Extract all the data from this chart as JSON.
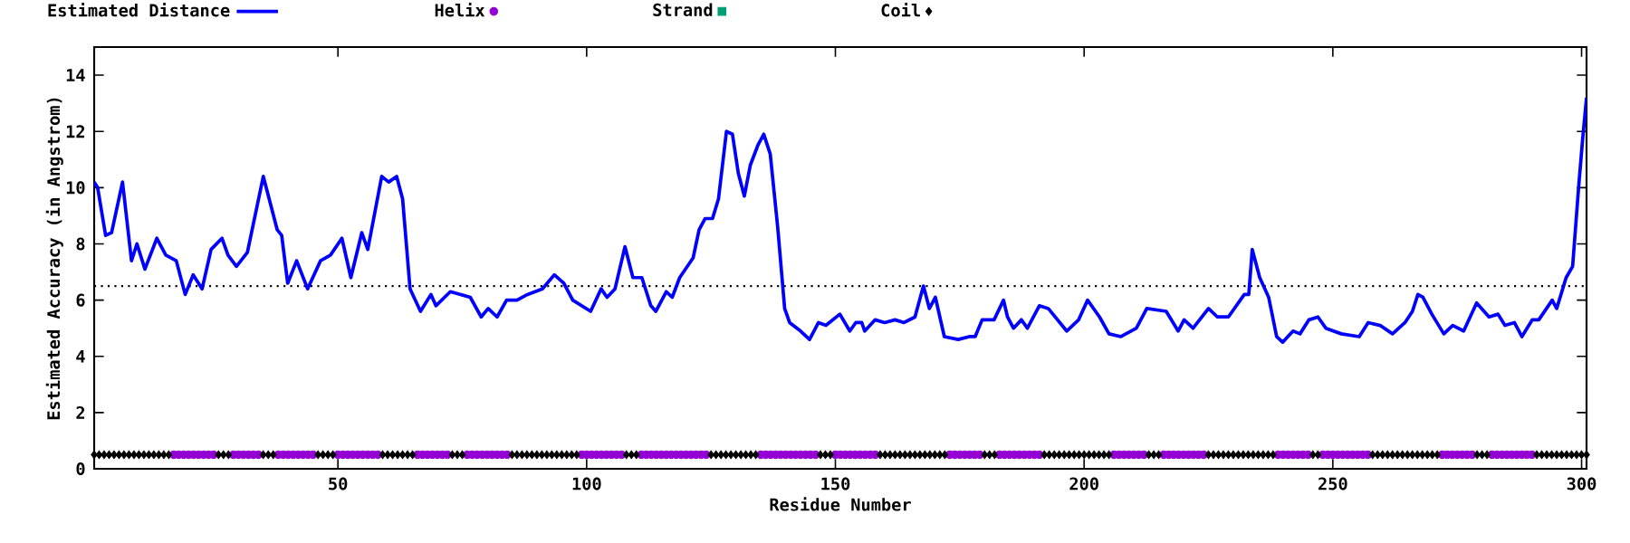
{
  "chart_data": {
    "type": "line",
    "xlabel": "Residue Number",
    "ylabel": "Estimated Accuracy (in Angstrom)",
    "xlim": [
      1,
      301
    ],
    "ylim": [
      0,
      15
    ],
    "xticks": [
      50,
      100,
      150,
      200,
      250,
      300
    ],
    "yticks": [
      0,
      2,
      4,
      6,
      8,
      10,
      12,
      14
    ],
    "legend": "top",
    "ref_lines": [
      {
        "axis": "y",
        "value": 6.5,
        "color": "#000000",
        "line_style": "dotted"
      }
    ],
    "series": [
      {
        "name": "Estimated Distance",
        "color": "#0000ff",
        "marker": "none",
        "line_style": "solid",
        "x": [
          1,
          1.7,
          3.3,
          4.5,
          6.7,
          8.5,
          9.6,
          11.2,
          13.6,
          15.4,
          17.5,
          19.3,
          20.9,
          22.7,
          24.5,
          26.7,
          27.9,
          29.6,
          31.8,
          35.0,
          37.8,
          38.7,
          39.9,
          41.7,
          43.9,
          46.5,
          48.5,
          50.8,
          52.6,
          54.8,
          56.0,
          58.8,
          60.2,
          61.8,
          63.0,
          64.5,
          66.6,
          68.7,
          69.7,
          72.6,
          76.6,
          78.8,
          80.2,
          82.0,
          83.9,
          86.0,
          88.1,
          91.1,
          93.5,
          95.4,
          97.2,
          100.8,
          102.9,
          104.1,
          105.7,
          107.7,
          109.3,
          111.1,
          112.9,
          113.9,
          116.0,
          117.2,
          118.7,
          121.4,
          122.6,
          123.8,
          125.3,
          126.5,
          128.1,
          129.3,
          130.5,
          131.7,
          132.9,
          134.4,
          135.6,
          136.9,
          138.4,
          139.8,
          140.8,
          143.0,
          144.8,
          146.6,
          148.1,
          150.9,
          152.9,
          154.1,
          155.3,
          155.9,
          158.0,
          159.9,
          162.0,
          163.8,
          166.0,
          167.7,
          168.9,
          170.1,
          171.9,
          174.7,
          176.9,
          178.1,
          179.5,
          181.9,
          183.8,
          184.6,
          185.8,
          187.4,
          188.6,
          191.0,
          192.8,
          196.5,
          198.9,
          200.7,
          203.1,
          205.0,
          207.4,
          210.5,
          212.6,
          216.5,
          218.9,
          220.1,
          221.9,
          225.0,
          226.8,
          229.0,
          232.2,
          233.1,
          233.8,
          235.3,
          237.1,
          238.7,
          239.9,
          242.0,
          243.4,
          245.2,
          247.0,
          248.6,
          251.7,
          255.3,
          257.1,
          259.5,
          262.0,
          264.5,
          266.0,
          267.1,
          268.1,
          269.9,
          272.3,
          274.1,
          276.3,
          278.9,
          281.4,
          283.2,
          284.6,
          286.5,
          288.0,
          290.1,
          291.4,
          294.1,
          295.0,
          296.9,
          298.2,
          299.4,
          300.2,
          301.0
        ],
        "values": [
          10.2,
          10.0,
          8.3,
          8.4,
          10.2,
          7.4,
          8.0,
          7.1,
          8.2,
          7.6,
          7.4,
          6.2,
          6.9,
          6.4,
          7.8,
          8.2,
          7.6,
          7.2,
          7.7,
          10.4,
          8.5,
          8.3,
          6.6,
          7.4,
          6.4,
          7.4,
          7.6,
          8.2,
          6.8,
          8.4,
          7.8,
          10.4,
          10.2,
          10.4,
          9.6,
          6.4,
          5.6,
          6.2,
          5.8,
          6.3,
          6.1,
          5.4,
          5.7,
          5.4,
          6.0,
          6.0,
          6.2,
          6.4,
          6.9,
          6.6,
          6.0,
          5.6,
          6.4,
          6.1,
          6.4,
          7.9,
          6.8,
          6.8,
          5.8,
          5.6,
          6.3,
          6.1,
          6.8,
          7.5,
          8.5,
          8.9,
          8.9,
          9.6,
          12.0,
          11.9,
          10.5,
          9.7,
          10.8,
          11.5,
          11.9,
          11.2,
          8.6,
          5.7,
          5.2,
          4.9,
          4.6,
          5.2,
          5.1,
          5.5,
          4.9,
          5.2,
          5.2,
          4.9,
          5.3,
          5.2,
          5.3,
          5.2,
          5.4,
          6.5,
          5.7,
          6.1,
          4.7,
          4.6,
          4.7,
          4.7,
          5.3,
          5.3,
          6.0,
          5.4,
          5.0,
          5.3,
          5.0,
          5.8,
          5.7,
          4.9,
          5.3,
          6.0,
          5.4,
          4.8,
          4.7,
          5.0,
          5.7,
          5.6,
          4.9,
          5.3,
          5.0,
          5.7,
          5.4,
          5.4,
          6.2,
          6.2,
          7.8,
          6.8,
          6.1,
          4.7,
          4.5,
          4.9,
          4.8,
          5.3,
          5.4,
          5.0,
          4.8,
          4.7,
          5.2,
          5.1,
          4.8,
          5.2,
          5.6,
          6.2,
          6.1,
          5.5,
          4.8,
          5.1,
          4.9,
          5.9,
          5.4,
          5.5,
          5.1,
          5.2,
          4.7,
          5.3,
          5.3,
          6.0,
          5.7,
          6.8,
          7.2,
          10.0,
          11.7,
          13.2
        ]
      },
      {
        "name": "Helix",
        "type": "scatter",
        "color": "#9400d3",
        "marker": "circle",
        "x": [
          17,
          18,
          19,
          20,
          21,
          22,
          23,
          24,
          25,
          29,
          30,
          31,
          32,
          33,
          34,
          38,
          39,
          40,
          41,
          42,
          43,
          44,
          45,
          50,
          51,
          52,
          53,
          54,
          55,
          56,
          57,
          58,
          66,
          67,
          68,
          69,
          70,
          71,
          72,
          76,
          77,
          78,
          79,
          80,
          81,
          82,
          83,
          84,
          99,
          100,
          101,
          102,
          103,
          104,
          105,
          106,
          107,
          111,
          112,
          113,
          114,
          115,
          116,
          117,
          118,
          119,
          120,
          121,
          122,
          123,
          124,
          135,
          136,
          137,
          138,
          139,
          140,
          141,
          142,
          143,
          144,
          145,
          146,
          150,
          151,
          152,
          153,
          154,
          155,
          156,
          157,
          158,
          173,
          174,
          175,
          176,
          177,
          178,
          179,
          183,
          184,
          185,
          186,
          187,
          188,
          189,
          190,
          191,
          206,
          207,
          208,
          209,
          210,
          211,
          212,
          216,
          217,
          218,
          219,
          220,
          221,
          222,
          223,
          224,
          239,
          240,
          241,
          242,
          243,
          244,
          245,
          248,
          249,
          250,
          251,
          252,
          253,
          254,
          255,
          256,
          257,
          272,
          273,
          274,
          275,
          276,
          277,
          278,
          282,
          283,
          284,
          285,
          286,
          287,
          288,
          289,
          290
        ],
        "values": [
          0.5,
          0.5,
          0.5,
          0.5,
          0.5,
          0.5,
          0.5,
          0.5,
          0.5,
          0.5,
          0.5,
          0.5,
          0.5,
          0.5,
          0.5,
          0.5,
          0.5,
          0.5,
          0.5,
          0.5,
          0.5,
          0.5,
          0.5,
          0.5,
          0.5,
          0.5,
          0.5,
          0.5,
          0.5,
          0.5,
          0.5,
          0.5,
          0.5,
          0.5,
          0.5,
          0.5,
          0.5,
          0.5,
          0.5,
          0.5,
          0.5,
          0.5,
          0.5,
          0.5,
          0.5,
          0.5,
          0.5,
          0.5,
          0.5,
          0.5,
          0.5,
          0.5,
          0.5,
          0.5,
          0.5,
          0.5,
          0.5,
          0.5,
          0.5,
          0.5,
          0.5,
          0.5,
          0.5,
          0.5,
          0.5,
          0.5,
          0.5,
          0.5,
          0.5,
          0.5,
          0.5,
          0.5,
          0.5,
          0.5,
          0.5,
          0.5,
          0.5,
          0.5,
          0.5,
          0.5,
          0.5,
          0.5,
          0.5,
          0.5,
          0.5,
          0.5,
          0.5,
          0.5,
          0.5,
          0.5,
          0.5,
          0.5,
          0.5,
          0.5,
          0.5,
          0.5,
          0.5,
          0.5,
          0.5,
          0.5,
          0.5,
          0.5,
          0.5,
          0.5,
          0.5,
          0.5,
          0.5,
          0.5,
          0.5,
          0.5,
          0.5,
          0.5,
          0.5,
          0.5,
          0.5,
          0.5,
          0.5,
          0.5,
          0.5,
          0.5,
          0.5,
          0.5,
          0.5,
          0.5,
          0.5,
          0.5,
          0.5,
          0.5,
          0.5,
          0.5,
          0.5,
          0.5,
          0.5,
          0.5,
          0.5,
          0.5,
          0.5,
          0.5,
          0.5,
          0.5,
          0.5,
          0.5,
          0.5,
          0.5,
          0.5,
          0.5,
          0.5,
          0.5,
          0.5,
          0.5,
          0.5,
          0.5,
          0.5,
          0.5,
          0.5,
          0.5,
          0.5
        ]
      },
      {
        "name": "Strand",
        "type": "scatter",
        "color": "#009e73",
        "marker": "square"
      },
      {
        "name": "Coil",
        "type": "scatter",
        "color": "#000000",
        "marker": "diamond",
        "x": [
          1,
          2,
          3,
          4,
          5,
          6,
          7,
          8,
          9,
          10,
          11,
          12,
          13,
          14,
          15,
          16,
          26,
          27,
          28,
          35,
          36,
          37,
          46,
          47,
          48,
          49,
          59,
          60,
          61,
          62,
          63,
          64,
          65,
          73,
          74,
          75,
          85,
          86,
          87,
          88,
          89,
          90,
          91,
          92,
          93,
          94,
          95,
          96,
          97,
          98,
          108,
          109,
          110,
          125,
          126,
          127,
          128,
          129,
          130,
          131,
          132,
          133,
          134,
          147,
          148,
          149,
          159,
          160,
          161,
          162,
          163,
          164,
          165,
          166,
          167,
          168,
          169,
          170,
          171,
          172,
          180,
          181,
          182,
          192,
          193,
          194,
          195,
          196,
          197,
          198,
          199,
          200,
          201,
          202,
          203,
          204,
          205,
          213,
          214,
          215,
          225,
          226,
          227,
          228,
          229,
          230,
          231,
          232,
          233,
          234,
          235,
          236,
          237,
          238,
          246,
          247,
          258,
          259,
          260,
          261,
          262,
          263,
          264,
          265,
          266,
          267,
          268,
          269,
          270,
          271,
          279,
          280,
          281,
          291,
          292,
          293,
          294,
          295,
          296,
          297,
          298,
          299,
          300,
          301
        ],
        "values": [
          0.5,
          0.5,
          0.5,
          0.5,
          0.5,
          0.5,
          0.5,
          0.5,
          0.5,
          0.5,
          0.5,
          0.5,
          0.5,
          0.5,
          0.5,
          0.5,
          0.5,
          0.5,
          0.5,
          0.5,
          0.5,
          0.5,
          0.5,
          0.5,
          0.5,
          0.5,
          0.5,
          0.5,
          0.5,
          0.5,
          0.5,
          0.5,
          0.5,
          0.5,
          0.5,
          0.5,
          0.5,
          0.5,
          0.5,
          0.5,
          0.5,
          0.5,
          0.5,
          0.5,
          0.5,
          0.5,
          0.5,
          0.5,
          0.5,
          0.5,
          0.5,
          0.5,
          0.5,
          0.5,
          0.5,
          0.5,
          0.5,
          0.5,
          0.5,
          0.5,
          0.5,
          0.5,
          0.5,
          0.5,
          0.5,
          0.5,
          0.5,
          0.5,
          0.5,
          0.5,
          0.5,
          0.5,
          0.5,
          0.5,
          0.5,
          0.5,
          0.5,
          0.5,
          0.5,
          0.5,
          0.5,
          0.5,
          0.5,
          0.5,
          0.5,
          0.5,
          0.5,
          0.5,
          0.5,
          0.5,
          0.5,
          0.5,
          0.5,
          0.5,
          0.5,
          0.5,
          0.5,
          0.5,
          0.5,
          0.5,
          0.5,
          0.5,
          0.5,
          0.5,
          0.5,
          0.5,
          0.5,
          0.5,
          0.5,
          0.5,
          0.5,
          0.5,
          0.5,
          0.5,
          0.5,
          0.5,
          0.5,
          0.5,
          0.5,
          0.5,
          0.5,
          0.5,
          0.5,
          0.5,
          0.5,
          0.5,
          0.5,
          0.5,
          0.5,
          0.5,
          0.5,
          0.5,
          0.5,
          0.5,
          0.5,
          0.5,
          0.5,
          0.5,
          0.5,
          0.5,
          0.5,
          0.5,
          0.5,
          0.5
        ]
      }
    ]
  }
}
